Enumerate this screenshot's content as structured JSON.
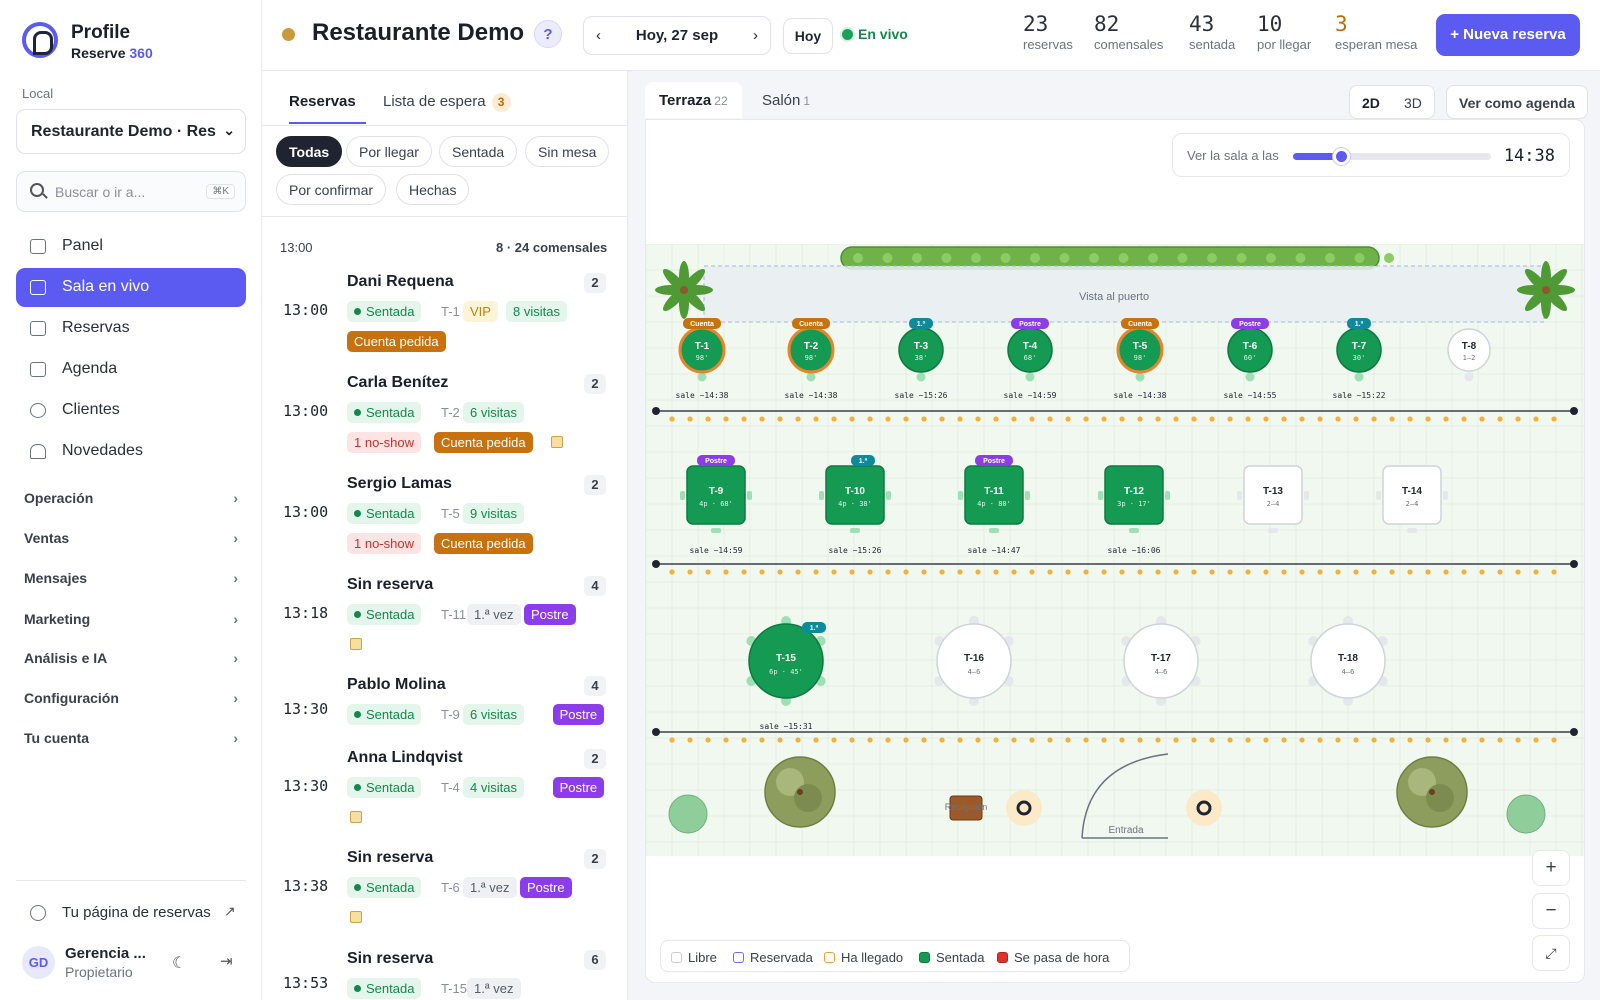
{
  "brand": {
    "title": "Profile",
    "sub_a": "Reserve ",
    "sub_b": "360"
  },
  "sidebar": {
    "local_label": "Local",
    "local_value": "Restaurante Demo · Res",
    "search_placeholder": "Buscar o ir a...",
    "search_kbd": "⌘K",
    "nav": [
      "Panel",
      "Sala en vivo",
      "Reservas",
      "Agenda",
      "Clientes",
      "Novedades"
    ],
    "sections": [
      "Operación",
      "Ventas",
      "Mensajes",
      "Marketing",
      "Análisis e IA",
      "Configuración",
      "Tu cuenta"
    ],
    "booking_page": "Tu página de reservas",
    "user_initials": "GD",
    "user_name": "Gerencia ...",
    "user_role": "Propietario"
  },
  "header": {
    "title": "Restaurante Demo",
    "help": "?",
    "date": "Hoy, 27 sep",
    "prev": "‹",
    "next": "›",
    "today": "Hoy",
    "live": "En vivo",
    "stats": [
      {
        "n": "23",
        "l": "reservas",
        "color": "#2b2f3a"
      },
      {
        "n": "82",
        "l": "comensales",
        "color": "#2b2f3a"
      },
      {
        "n": "43",
        "l": "sentada",
        "color": "#2b2f3a"
      },
      {
        "n": "10",
        "l": "por llegar",
        "color": "#2b2f3a"
      },
      {
        "n": "3",
        "l": "esperan mesa",
        "color": "#b86d0a"
      }
    ],
    "new_button": "+ Nueva reserva"
  },
  "list": {
    "tab_reservas": "Reservas",
    "tab_espera": "Lista de espera",
    "espera_count": "3",
    "filters": [
      "Todas",
      "Por llegar",
      "Sentada",
      "Sin mesa",
      "Por confirmar",
      "Hechas"
    ],
    "slot_time": "13:00",
    "slot_count": "8 · 24 comensales",
    "reservations": [
      {
        "time": "13:00",
        "name": "Dani Requena",
        "pax": "2",
        "status": "Sentada",
        "table": "T-1",
        "tags": [
          "VIP",
          "8 visitas"
        ],
        "tags2": [
          "Cuenta pedida"
        ],
        "note": false
      },
      {
        "time": "13:00",
        "name": "Carla Benítez",
        "pax": "2",
        "status": "Sentada",
        "table": "T-2",
        "tags": [
          "6 visitas"
        ],
        "tags2": [
          "1 no-show",
          "Cuenta pedida"
        ],
        "note": true
      },
      {
        "time": "13:00",
        "name": "Sergio Lamas",
        "pax": "2",
        "status": "Sentada",
        "table": "T-5",
        "tags": [
          "9 visitas"
        ],
        "tags2": [
          "1 no-show",
          "Cuenta pedida"
        ],
        "note": false
      },
      {
        "time": "13:18",
        "name": "Sin reserva",
        "pax": "4",
        "status": "Sentada",
        "table": "T-11",
        "tags": [
          "1.ª vez",
          "Postre"
        ],
        "tags2": [],
        "note": true
      },
      {
        "time": "13:30",
        "name": "Pablo Molina",
        "pax": "4",
        "status": "Sentada",
        "table": "T-9",
        "tags": [
          "6 visitas",
          "Postre"
        ],
        "tags2": [],
        "note": false
      },
      {
        "time": "13:30",
        "name": "Anna Lindqvist",
        "pax": "2",
        "status": "Sentada",
        "table": "T-4",
        "tags": [
          "4 visitas",
          "Postre"
        ],
        "tags2": [],
        "note": true
      },
      {
        "time": "13:38",
        "name": "Sin reserva",
        "pax": "2",
        "status": "Sentada",
        "table": "T-6",
        "tags": [
          "1.ª vez",
          "Postre"
        ],
        "tags2": [],
        "note": true
      },
      {
        "time": "13:53",
        "name": "Sin reserva",
        "pax": "6",
        "status": "Sentada",
        "table": "T-15",
        "tags": [
          "1.ª vez"
        ],
        "tags2": [],
        "note": false
      }
    ]
  },
  "floor": {
    "tab_terraza": "Terraza",
    "terraza_count": "22",
    "tab_salon": "Salón",
    "salon_count": "1",
    "view_2d": "2D",
    "view_3d": "3D",
    "agenda_button": "Ver como agenda",
    "time_label": "Ver la sala a las",
    "time_value": "14:38",
    "time_position": 0.24,
    "view_label": "Vista al puerto",
    "reception_label": "Recepción",
    "entrance_label": "Entrada",
    "tables": [
      {
        "id": "T-1",
        "info": "98'",
        "tag": "Cuenta",
        "out": "sale ~14:38",
        "state": "bill"
      },
      {
        "id": "T-2",
        "info": "98'",
        "tag": "Cuenta",
        "out": "sale ~14:38",
        "state": "bill"
      },
      {
        "id": "T-3",
        "info": "38'",
        "tag": "1.ª",
        "out": "sale ~15:26",
        "state": "seated"
      },
      {
        "id": "T-4",
        "info": "68'",
        "tag": "Postre",
        "out": "sale ~14:59",
        "state": "seated"
      },
      {
        "id": "T-5",
        "info": "98'",
        "tag": "Cuenta",
        "out": "sale ~14:38",
        "state": "bill"
      },
      {
        "id": "T-6",
        "info": "60'",
        "tag": "Postre",
        "out": "sale ~14:55",
        "state": "seated"
      },
      {
        "id": "T-7",
        "info": "30'",
        "tag": "1.ª",
        "out": "sale ~15:22",
        "state": "seated"
      },
      {
        "id": "T-8",
        "info": "1–2",
        "tag": "",
        "out": "",
        "state": "free"
      },
      {
        "id": "T-9",
        "info": "4p · 68'",
        "tag": "Postre",
        "out": "sale ~14:59",
        "state": "seated"
      },
      {
        "id": "T-10",
        "info": "4p · 38'",
        "tag": "1.ª",
        "out": "sale ~15:26",
        "state": "seated"
      },
      {
        "id": "T-11",
        "info": "4p · 80'",
        "tag": "Postre",
        "out": "sale ~14:47",
        "state": "seated"
      },
      {
        "id": "T-12",
        "info": "3p · 17'",
        "tag": "",
        "out": "sale ~16:06",
        "state": "seated"
      },
      {
        "id": "T-13",
        "info": "2–4",
        "tag": "",
        "out": "",
        "state": "free"
      },
      {
        "id": "T-14",
        "info": "2–4",
        "tag": "",
        "out": "",
        "state": "free"
      },
      {
        "id": "T-15",
        "info": "6p · 45'",
        "tag": "1.ª",
        "out": "sale ~15:31",
        "state": "seated"
      },
      {
        "id": "T-16",
        "info": "4–6",
        "tag": "",
        "out": "",
        "state": "free"
      },
      {
        "id": "T-17",
        "info": "4–6",
        "tag": "",
        "out": "",
        "state": "free"
      },
      {
        "id": "T-18",
        "info": "4–6",
        "tag": "",
        "out": "",
        "state": "free"
      }
    ],
    "legend": [
      {
        "label": "Libre",
        "color": "#ffffff",
        "border": "#c9ccd3"
      },
      {
        "label": "Reservada",
        "color": "#ffffff",
        "border": "#6d6df0"
      },
      {
        "label": "Ha llegado",
        "color": "#ffffff",
        "border": "#e8a23a"
      },
      {
        "label": "Sentada",
        "color": "#149a52",
        "border": "#0e7a40"
      },
      {
        "label": "Se pasa de hora",
        "color": "#e0322b",
        "border": "#b3211b"
      }
    ],
    "zoom_in": "+",
    "zoom_out": "−",
    "fullscreen": "⤢"
  }
}
